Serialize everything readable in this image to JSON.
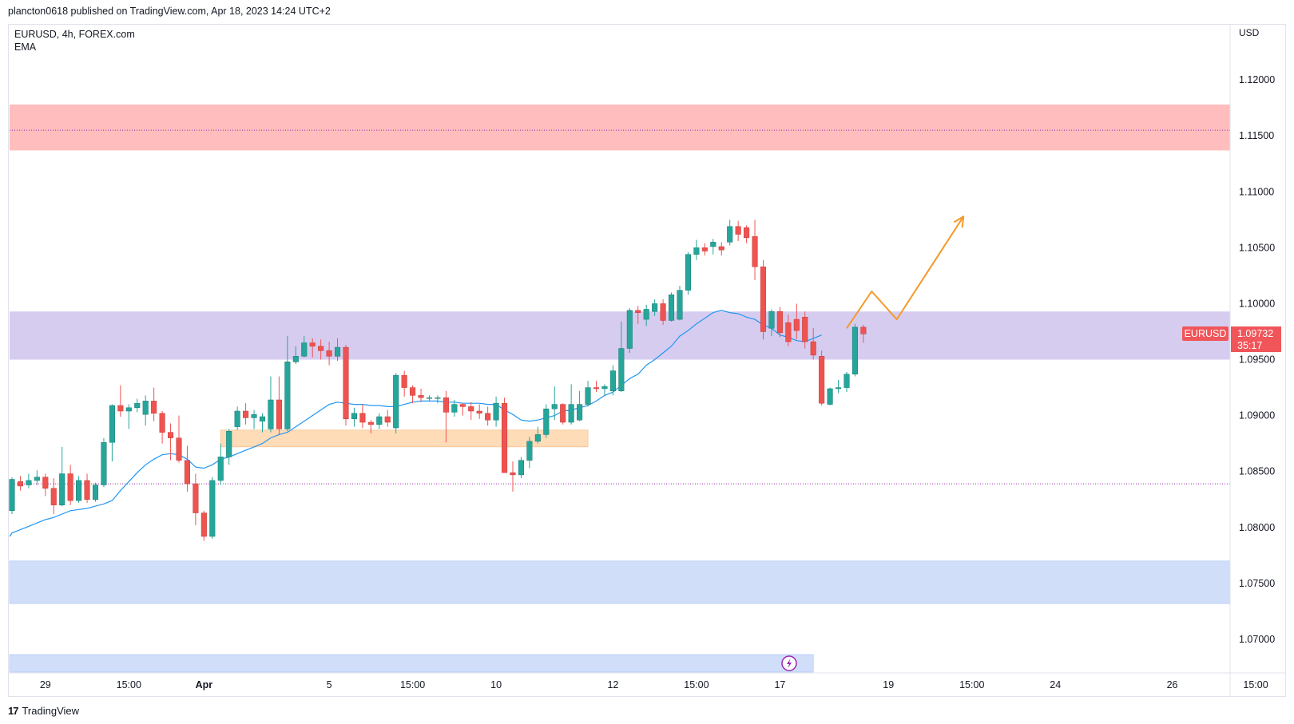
{
  "header": {
    "published_text": "plancton0618 published on TradingView.com, Apr 18, 2023 14:24 UTC+2"
  },
  "legend": {
    "symbol_line": "EURUSD, 4h, FOREX.com",
    "indicator": "EMA"
  },
  "footer": {
    "brand": "TradingView",
    "logo_glyph": "17"
  },
  "colors": {
    "up": "#26a69a",
    "down": "#ef5350",
    "ema": "#2196f3",
    "resistance_zone": "#ffbdbd",
    "pivot_zone": "#d6ccf0",
    "demand_zone": "#ffdcb8",
    "support_zone": "#d0defa",
    "projection": "#f39a2b",
    "price_label": "#f0555a"
  },
  "chart_data": {
    "type": "candlestick",
    "symbol": "EURUSD",
    "timeframe": "4h",
    "currency_label": "USD",
    "ylim": [
      1.067,
      1.125
    ],
    "y_ticks": [
      "1.12000",
      "1.11500",
      "1.11000",
      "1.10500",
      "1.10000",
      "1.09500",
      "1.09000",
      "1.08500",
      "1.08000",
      "1.07500",
      "1.07000"
    ],
    "y_tick_values": [
      1.12,
      1.115,
      1.11,
      1.105,
      1.1,
      1.095,
      1.09,
      1.085,
      1.08,
      1.075,
      1.07
    ],
    "x_ticks": [
      {
        "label": "29",
        "index": 4
      },
      {
        "label": "15:00",
        "index": 14
      },
      {
        "label": "Apr",
        "index": 23,
        "bold": true
      },
      {
        "label": "5",
        "index": 38
      },
      {
        "label": "15:00",
        "index": 48
      },
      {
        "label": "10",
        "index": 58
      },
      {
        "label": "12",
        "index": 72
      },
      {
        "label": "15:00",
        "index": 82
      },
      {
        "label": "17",
        "index": 92
      },
      {
        "label": "19",
        "index": 105
      },
      {
        "label": "15:00",
        "index": 115
      },
      {
        "label": "24",
        "index": 125
      },
      {
        "label": "26",
        "index": 139
      },
      {
        "label": "15:00",
        "index": 149
      }
    ],
    "last_price": {
      "symbol": "EURUSD",
      "price": "1.09732",
      "value": 1.09732,
      "countdown": "35:17"
    },
    "zones": [
      {
        "name": "resistance-zone",
        "from": 1.1137,
        "to": 1.1178,
        "color": "#ffbdbd",
        "mid_line": 1.1155
      },
      {
        "name": "pivot-zone",
        "from": 1.095,
        "to": 1.0993,
        "color": "#d6ccf0"
      },
      {
        "name": "demand-zone",
        "from": 1.0872,
        "to": 1.0887,
        "start": 25,
        "end": 69,
        "color": "#ffdcb8"
      },
      {
        "name": "support-zone",
        "from": 1.0732,
        "to": 1.077,
        "color": "#d0defa"
      }
    ],
    "dotted_level": 1.0839,
    "projection_path": [
      [
        100,
        1.0978
      ],
      [
        103,
        1.1011
      ],
      [
        106,
        1.0986
      ],
      [
        114,
        1.1078
      ]
    ],
    "session_bar_end_index": 96,
    "ema": [
      1.0795,
      1.0798,
      1.0801,
      1.0804,
      1.0807,
      1.0809,
      1.0812,
      1.0815,
      1.0816,
      1.0817,
      1.0819,
      1.0821,
      1.0824,
      1.0833,
      1.0841,
      1.0849,
      1.0856,
      1.0861,
      1.0865,
      1.0866,
      1.0865,
      1.0861,
      1.0854,
      1.0853,
      1.0856,
      1.0861,
      1.0863,
      1.0866,
      1.0869,
      1.0872,
      1.0875,
      1.088,
      1.0883,
      1.0885,
      1.089,
      1.0895,
      1.09,
      1.0905,
      1.091,
      1.0912,
      1.0911,
      1.091,
      1.091,
      1.0909,
      1.0909,
      1.0908,
      1.0908,
      1.091,
      1.0912,
      1.0913,
      1.0913,
      1.0913,
      1.0912,
      1.0912,
      1.0911,
      1.0911,
      1.0911,
      1.091,
      1.091,
      1.0905,
      1.0901,
      1.0896,
      1.0895,
      1.0896,
      1.0898,
      1.09,
      1.0904,
      1.0905,
      1.0907,
      1.0909,
      1.0913,
      1.0918,
      1.0921,
      1.0927,
      1.0933,
      1.0937,
      1.0945,
      1.095,
      1.0956,
      1.0962,
      1.0971,
      1.0976,
      1.0982,
      1.0987,
      1.0992,
      1.0994,
      1.0992,
      1.0991,
      1.0988,
      1.0986,
      1.0981,
      1.0978,
      1.0972,
      1.097,
      1.0967,
      1.0966,
      1.0969,
      1.0972
    ],
    "candles": [
      [
        1.0815,
        1.0843,
        1.0845,
        1.0812
      ],
      [
        1.0841,
        1.0837,
        1.0846,
        1.0833
      ],
      [
        1.0838,
        1.0842,
        1.0848,
        1.0835
      ],
      [
        1.0842,
        1.0845,
        1.0851,
        1.0838
      ],
      [
        1.0845,
        1.0835,
        1.0848,
        1.0828
      ],
      [
        1.0835,
        1.082,
        1.0844,
        1.0812
      ],
      [
        1.082,
        1.0848,
        1.0872,
        1.0819
      ],
      [
        1.0848,
        1.0824,
        1.0856,
        1.082
      ],
      [
        1.0824,
        1.0842,
        1.0846,
        1.0822
      ],
      [
        1.0842,
        1.0825,
        1.0848,
        1.0822
      ],
      [
        1.0825,
        1.0838,
        1.084,
        1.0823
      ],
      [
        1.0838,
        1.0876,
        1.088,
        1.0836
      ],
      [
        1.0876,
        1.0909,
        1.091,
        1.0859
      ],
      [
        1.0909,
        1.0904,
        1.0927,
        1.0899
      ],
      [
        1.0904,
        1.0907,
        1.091,
        1.0888
      ],
      [
        1.0907,
        1.0911,
        1.0915,
        1.0903
      ],
      [
        1.0901,
        1.0913,
        1.0918,
        1.0891
      ],
      [
        1.0913,
        1.0902,
        1.0925,
        1.0895
      ],
      [
        1.0902,
        1.0885,
        1.0904,
        1.0875
      ],
      [
        1.0885,
        1.088,
        1.0893,
        1.086
      ],
      [
        1.088,
        1.086,
        1.09,
        1.0858
      ],
      [
        1.086,
        1.0839,
        1.0873,
        1.0832
      ],
      [
        1.0839,
        1.0813,
        1.0848,
        1.0802
      ],
      [
        1.0813,
        1.0792,
        1.0815,
        1.0788
      ],
      [
        1.0792,
        1.0842,
        1.0845,
        1.079
      ],
      [
        1.0842,
        1.0863,
        1.0875,
        1.0838
      ],
      [
        1.0863,
        1.0886,
        1.0888,
        1.0856
      ],
      [
        1.089,
        1.0904,
        1.0908,
        1.0887
      ],
      [
        1.0904,
        1.0898,
        1.0911,
        1.0892
      ],
      [
        1.0898,
        1.0901,
        1.0905,
        1.0888
      ],
      [
        1.0895,
        1.0899,
        1.0902,
        1.0885
      ],
      [
        1.0888,
        1.0914,
        1.0935,
        1.0885
      ],
      [
        1.0914,
        1.0888,
        1.0935,
        1.0883
      ],
      [
        1.0888,
        1.0948,
        1.0971,
        1.0886
      ],
      [
        1.0948,
        1.0953,
        1.0962,
        1.0946
      ],
      [
        1.0953,
        1.0965,
        1.0971,
        1.0952
      ],
      [
        1.0965,
        1.0962,
        1.0969,
        1.0952
      ],
      [
        1.0962,
        1.0958,
        1.0968,
        1.095
      ],
      [
        1.0958,
        1.0953,
        1.0966,
        1.0945
      ],
      [
        1.0953,
        1.0961,
        1.0969,
        1.0949
      ],
      [
        1.0961,
        1.0897,
        1.0963,
        1.0891
      ],
      [
        1.0897,
        1.0902,
        1.0907,
        1.089
      ],
      [
        1.0902,
        1.0894,
        1.091,
        1.0889
      ],
      [
        1.0894,
        1.0892,
        1.0896,
        1.0884
      ],
      [
        1.0892,
        1.0899,
        1.0902,
        1.0888
      ],
      [
        1.0899,
        1.0894,
        1.0905,
        1.089
      ],
      [
        1.0889,
        1.0936,
        1.0938,
        1.0884
      ],
      [
        1.0936,
        1.0925,
        1.094,
        1.0917
      ],
      [
        1.0925,
        1.0918,
        1.0927,
        1.0911
      ],
      [
        1.0918,
        1.0916,
        1.0924,
        1.0912
      ],
      [
        1.0916,
        1.0916,
        1.0918,
        1.0913
      ],
      [
        1.0916,
        1.0916,
        1.0918,
        1.0911
      ],
      [
        1.0916,
        1.0903,
        1.0922,
        1.0876
      ],
      [
        1.0903,
        1.091,
        1.0914,
        1.0899
      ],
      [
        1.091,
        1.0908,
        1.0911,
        1.09
      ],
      [
        1.0908,
        1.0904,
        1.0912,
        1.0896
      ],
      [
        1.0904,
        1.0902,
        1.091,
        1.0897
      ],
      [
        1.0902,
        1.0896,
        1.0908,
        1.0891
      ],
      [
        1.0896,
        1.0911,
        1.0917,
        1.089
      ],
      [
        1.0911,
        1.0849,
        1.0916,
        1.0849
      ],
      [
        1.0849,
        1.0847,
        1.0859,
        1.0832
      ],
      [
        1.0847,
        1.086,
        1.0863,
        1.0844
      ],
      [
        1.086,
        1.0877,
        1.0881,
        1.0853
      ],
      [
        1.0877,
        1.0883,
        1.089,
        1.0875
      ],
      [
        1.0883,
        1.0906,
        1.091,
        1.088
      ],
      [
        1.0906,
        1.091,
        1.0926,
        1.0896
      ],
      [
        1.091,
        1.0894,
        1.0911,
        1.0892
      ],
      [
        1.0894,
        1.091,
        1.0928,
        1.0892
      ],
      [
        1.0896,
        1.091,
        1.0922,
        1.0895
      ],
      [
        1.091,
        1.0925,
        1.0931,
        1.0908
      ],
      [
        1.0925,
        1.0924,
        1.0931,
        1.0921
      ],
      [
        1.0924,
        1.0926,
        1.0928,
        1.0918
      ],
      [
        1.0922,
        1.094,
        1.0945,
        1.0918
      ],
      [
        1.0922,
        1.096,
        1.0984,
        1.0921
      ],
      [
        1.096,
        1.0994,
        1.0996,
        1.0956
      ],
      [
        1.0994,
        1.0992,
        1.0998,
        1.0982
      ],
      [
        1.0986,
        1.0995,
        1.0999,
        1.098
      ],
      [
        1.0993,
        1.1,
        1.1004,
        1.0989
      ],
      [
        1.1,
        1.0985,
        1.1004,
        1.0981
      ],
      [
        1.0985,
        1.1008,
        1.101,
        1.0984
      ],
      [
        1.0986,
        1.1012,
        1.1016,
        1.0985
      ],
      [
        1.1012,
        1.1044,
        1.1046,
        1.1008
      ],
      [
        1.1044,
        1.105,
        1.1057,
        1.1039
      ],
      [
        1.105,
        1.1047,
        1.1054,
        1.1043
      ],
      [
        1.1051,
        1.1055,
        1.1058,
        1.1044
      ],
      [
        1.1051,
        1.1048,
        1.1055,
        1.1043
      ],
      [
        1.1055,
        1.1069,
        1.1075,
        1.1052
      ],
      [
        1.1069,
        1.1062,
        1.1074,
        1.1056
      ],
      [
        1.1068,
        1.1059,
        1.107,
        1.1054
      ],
      [
        1.106,
        1.1033,
        1.1075,
        1.1021
      ],
      [
        1.1033,
        1.0975,
        1.1039,
        1.0968
      ],
      [
        1.0978,
        1.0993,
        1.0995,
        1.0971
      ],
      [
        1.0993,
        1.0974,
        1.0997,
        1.097
      ],
      [
        1.0983,
        1.0966,
        1.099,
        1.0962
      ],
      [
        1.0986,
        1.0976,
        1.1,
        1.0968
      ],
      [
        1.0988,
        1.0966,
        1.0993,
        1.096
      ],
      [
        1.0966,
        1.0954,
        1.0978,
        1.095
      ],
      [
        1.0953,
        1.0911,
        1.0958,
        1.0909
      ],
      [
        1.091,
        1.0924,
        1.0925,
        1.0909
      ],
      [
        1.0924,
        1.0925,
        1.0932,
        1.092
      ],
      [
        1.0925,
        1.0937,
        1.0939,
        1.0921
      ],
      [
        1.0937,
        1.0979,
        1.0982,
        1.0935
      ],
      [
        1.0979,
        1.0973,
        1.0981,
        1.0965
      ]
    ]
  }
}
